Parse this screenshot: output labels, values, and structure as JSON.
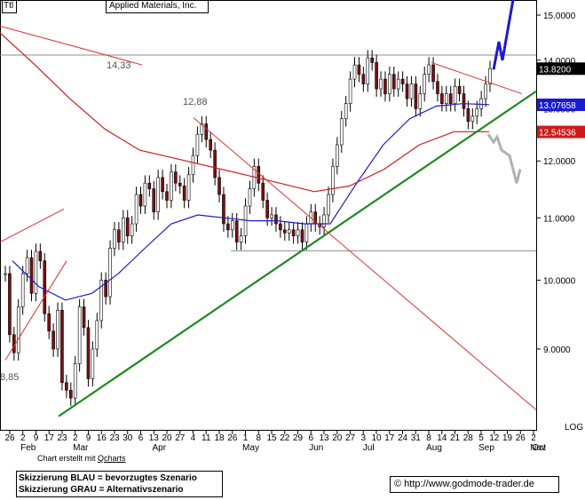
{
  "header": {
    "ticker": "Ttl",
    "title": "Applied Materials, Inc."
  },
  "footer": {
    "credit_prefix": "Chart erstellt mit",
    "credit_tool": "Qcharts",
    "scenario_blue": "Skizzierung BLAU = bevorzugtes Szenario",
    "scenario_grey": "Skizzierung GRAU = Alternativszenario",
    "copyright_symbol": "©",
    "website": "http://www.godmode-trader.de"
  },
  "chart_data": {
    "type": "candlestick",
    "y_scale": "log",
    "y_scale_label": "LOG",
    "ylim": [
      8.1,
      15.35
    ],
    "y_ticks": [
      {
        "value": 9.0,
        "label": "9.0000"
      },
      {
        "value": 10.0,
        "label": "10.0000"
      },
      {
        "value": 11.0,
        "label": "11.0000"
      },
      {
        "value": 12.0,
        "label": "12.0000"
      },
      {
        "value": 13.0,
        "label": "13.0000"
      },
      {
        "value": 14.0,
        "label": "14.0000"
      },
      {
        "value": 15.0,
        "label": "15.0000"
      }
    ],
    "x_ticks": [
      "26",
      "2",
      "9",
      "17",
      "23",
      "2",
      "9",
      "16",
      "23",
      "30",
      "6",
      "13",
      "20",
      "27",
      "4",
      "11",
      "18",
      "26",
      "1",
      "8",
      "15",
      "22",
      "29",
      "6",
      "13",
      "20",
      "27",
      "3",
      "10",
      "17",
      "24",
      "31",
      "8",
      "14",
      "21",
      "28",
      "5",
      "12",
      "19",
      "26",
      "2"
    ],
    "month_labels": [
      "Feb",
      "Mar",
      "Apr",
      "May",
      "Jun",
      "Jul",
      "Aug",
      "Sep",
      "Oct",
      "Nov"
    ],
    "price_labels": [
      {
        "label": "13.8200",
        "value": 13.82,
        "color": "#000000"
      },
      {
        "label": "13.07658",
        "value": 13.07658,
        "color": "#1a1ad0"
      },
      {
        "label": "12.54536",
        "value": 12.54536,
        "color": "#d01a1a"
      }
    ],
    "annotations": [
      {
        "text": "14,33",
        "value": 14.33
      },
      {
        "text": "12,88",
        "value": 12.88
      },
      {
        "text": "8,85",
        "value": 8.85
      }
    ],
    "horizontal_lines": [
      14.11,
      10.46
    ],
    "series": [
      {
        "name": "candles",
        "color": "#7a1010",
        "values": [
          10.1,
          9.2,
          8.95,
          9.6,
          10.1,
          10.35,
          9.8,
          10.45,
          10.3,
          9.5,
          9.25,
          9.0,
          9.55,
          8.55,
          8.45,
          8.35,
          8.8,
          9.6,
          9.3,
          8.6,
          9.0,
          9.4,
          10.0,
          9.75,
          10.5,
          10.8,
          10.6,
          11.0,
          10.7,
          10.9,
          11.4,
          11.2,
          11.6,
          11.5,
          11.1,
          11.7,
          11.45,
          11.3,
          11.8,
          11.6,
          11.55,
          11.3,
          11.75,
          12.1,
          12.5,
          12.7,
          12.4,
          12.2,
          11.7,
          11.4,
          10.9,
          10.8,
          10.95,
          10.6,
          10.7,
          11.2,
          11.5,
          11.9,
          11.6,
          11.3,
          11.0,
          11.05,
          10.9,
          10.8,
          10.75,
          10.8,
          10.7,
          10.8,
          10.6,
          10.9,
          11.1,
          10.9,
          10.85,
          11.05,
          11.4,
          11.9,
          12.3,
          12.8,
          13.1,
          13.6,
          13.9,
          13.7,
          13.5,
          14.05,
          13.95,
          13.4,
          13.6,
          13.3,
          13.7,
          13.4,
          13.6,
          13.5,
          13.2,
          13.5,
          13.0,
          13.3,
          13.7,
          13.9,
          13.55,
          13.3,
          13.1,
          13.3,
          13.1,
          13.45,
          13.3,
          13.0,
          12.75,
          12.85,
          13.0,
          13.2,
          13.5,
          13.82
        ]
      },
      {
        "name": "moving_average_blue",
        "color": "#1a1ad0",
        "values": [
          10.3,
          9.9,
          9.7,
          9.8,
          10.1,
          10.5,
          10.9,
          11.05,
          11.0,
          10.95,
          10.95,
          10.9,
          10.9,
          11.6,
          12.3,
          12.8,
          13.05,
          13.1,
          13.08
        ]
      },
      {
        "name": "moving_average_red",
        "color": "#d01a1a",
        "values": [
          14.6,
          13.9,
          13.2,
          12.6,
          12.2,
          12.05,
          11.9,
          11.75,
          11.6,
          11.45,
          11.55,
          11.85,
          12.3,
          12.55,
          12.55
        ]
      }
    ]
  }
}
